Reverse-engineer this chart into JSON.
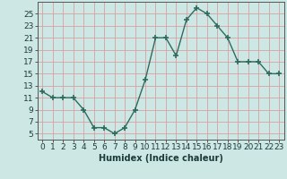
{
  "x": [
    0,
    1,
    2,
    3,
    4,
    5,
    6,
    7,
    8,
    9,
    10,
    11,
    12,
    13,
    14,
    15,
    16,
    17,
    18,
    19,
    20,
    21,
    22,
    23
  ],
  "y": [
    12,
    11,
    11,
    11,
    9,
    6,
    6,
    5,
    6,
    9,
    14,
    21,
    21,
    18,
    24,
    26,
    25,
    23,
    21,
    17,
    17,
    17,
    15,
    15
  ],
  "line_color": "#2e6b5e",
  "marker": "+",
  "marker_size": 4,
  "bg_color": "#cde8e4",
  "grid_color": "#d9a0a0",
  "xlabel": "Humidex (Indice chaleur)",
  "xlabel_fontsize": 7,
  "ylabel_ticks": [
    5,
    7,
    9,
    11,
    13,
    15,
    17,
    19,
    21,
    23,
    25
  ],
  "ylim": [
    4,
    27
  ],
  "xlim": [
    -0.5,
    23.5
  ],
  "tick_fontsize": 6.5
}
